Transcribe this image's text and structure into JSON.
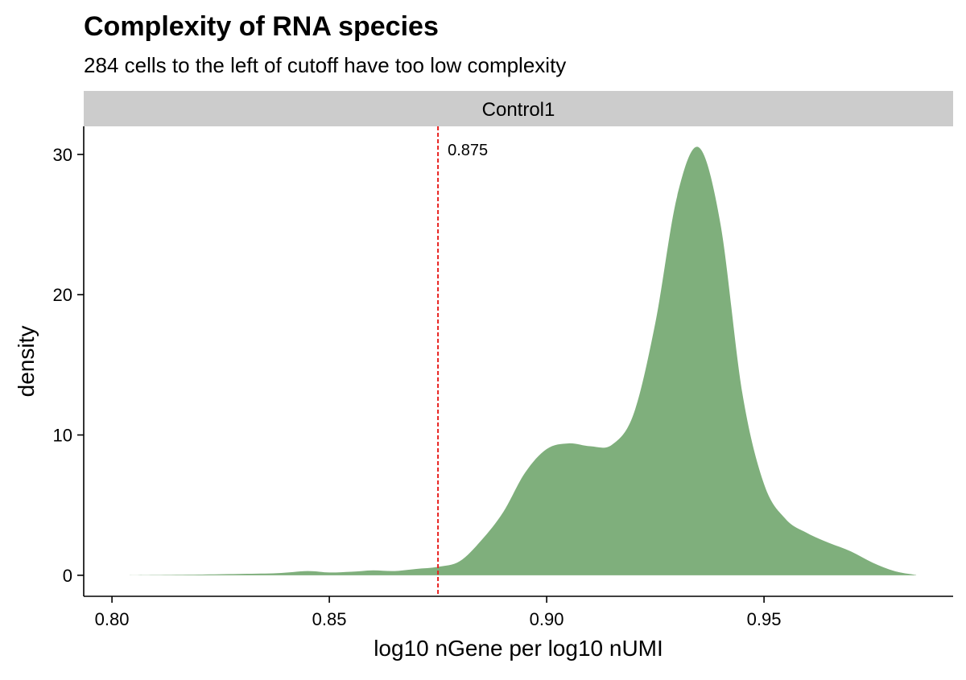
{
  "chart_data": {
    "type": "area",
    "title": "Complexity of RNA species",
    "subtitle": "284 cells to the left of cutoff have too low complexity",
    "facet_label": "Control1",
    "xlabel": "log10 nGene per log10 nUMI",
    "ylabel": "density",
    "xlim": [
      0.7935,
      0.9935
    ],
    "ylim": [
      -1.5,
      32
    ],
    "x_ticks": [
      0.8,
      0.85,
      0.9,
      0.95
    ],
    "x_tick_labels": [
      "0.80",
      "0.85",
      "0.90",
      "0.95"
    ],
    "y_ticks": [
      0,
      10,
      20,
      30
    ],
    "y_tick_labels": [
      "0",
      "10",
      "20",
      "30"
    ],
    "grid": false,
    "fill_color": "#7faf7c",
    "cutoff": {
      "x": 0.875,
      "label": "0.875",
      "color": "#e8211f",
      "line_style": "dashed"
    },
    "series": [
      {
        "x": [
          0.803,
          0.81,
          0.82,
          0.83,
          0.838,
          0.845,
          0.85,
          0.855,
          0.86,
          0.865,
          0.87,
          0.875,
          0.88,
          0.885,
          0.89,
          0.895,
          0.9,
          0.905,
          0.91,
          0.915,
          0.92,
          0.925,
          0.93,
          0.935,
          0.94,
          0.945,
          0.95,
          0.955,
          0.96,
          0.965,
          0.97,
          0.975,
          0.98,
          0.985
        ],
        "values": [
          0.0,
          0.02,
          0.05,
          0.1,
          0.15,
          0.3,
          0.2,
          0.25,
          0.35,
          0.3,
          0.45,
          0.6,
          1.0,
          2.5,
          4.5,
          7.3,
          9.0,
          9.4,
          9.2,
          9.3,
          11.5,
          18.0,
          27.0,
          30.5,
          25.0,
          13.0,
          6.5,
          4.0,
          3.0,
          2.3,
          1.7,
          0.9,
          0.3,
          0.02
        ]
      }
    ]
  }
}
